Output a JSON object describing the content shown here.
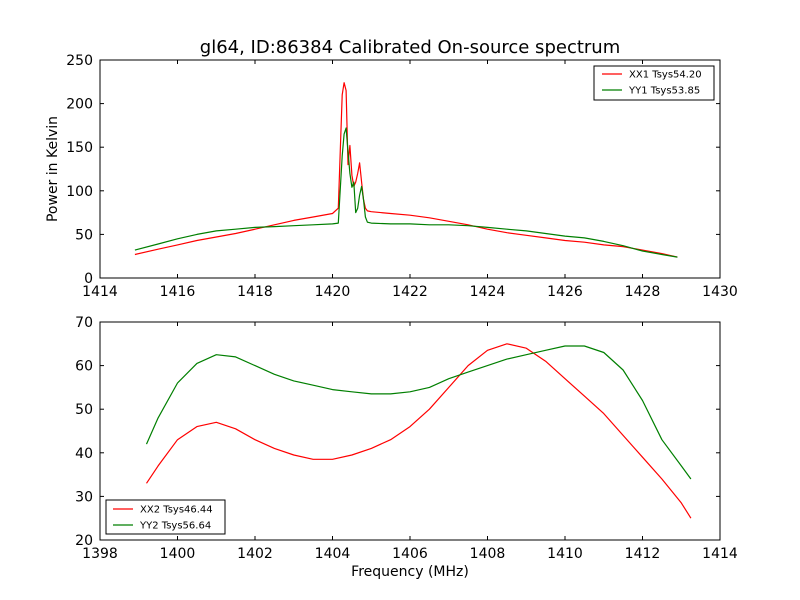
{
  "chart_data": [
    {
      "type": "line",
      "title": "gl64, ID:86384 Calibrated On-source spectrum",
      "xlabel": "",
      "ylabel": "Power in Kelvin",
      "xlim": [
        1414,
        1430
      ],
      "ylim": [
        0,
        250
      ],
      "x_ticks": [
        "1414",
        "1416",
        "1418",
        "1420",
        "1422",
        "1424",
        "1426",
        "1428",
        "1430"
      ],
      "y_ticks": [
        "0",
        "50",
        "100",
        "150",
        "200",
        "250"
      ],
      "legend_position": "top-right",
      "grid": false,
      "series": [
        {
          "name": "XX1 Tsys54.20",
          "color": "#ff0000",
          "x": [
            1414.9,
            1415.5,
            1416,
            1416.5,
            1417,
            1417.5,
            1418,
            1418.5,
            1419,
            1419.5,
            1420,
            1420.15,
            1420.25,
            1420.3,
            1420.35,
            1420.4,
            1420.45,
            1420.5,
            1420.55,
            1420.6,
            1420.65,
            1420.7,
            1420.75,
            1420.8,
            1420.85,
            1420.9,
            1421,
            1421.5,
            1422,
            1422.5,
            1423,
            1423.5,
            1424,
            1424.5,
            1425,
            1425.5,
            1426,
            1426.5,
            1427,
            1427.5,
            1428,
            1428.5,
            1428.9
          ],
          "y": [
            27,
            33,
            38,
            43,
            47,
            51,
            56,
            61,
            66,
            70,
            74,
            80,
            210,
            224,
            215,
            130,
            152,
            118,
            105,
            110,
            120,
            132,
            110,
            90,
            80,
            77,
            76,
            74,
            72,
            69,
            65,
            61,
            56,
            52,
            49,
            46,
            43,
            41,
            38,
            36,
            32,
            28,
            24
          ]
        },
        {
          "name": "YY1 Tsys53.85",
          "color": "#007f00",
          "x": [
            1414.9,
            1415.5,
            1416,
            1416.5,
            1417,
            1417.5,
            1418,
            1418.5,
            1419,
            1419.5,
            1420,
            1420.15,
            1420.25,
            1420.3,
            1420.35,
            1420.4,
            1420.45,
            1420.5,
            1420.55,
            1420.6,
            1420.65,
            1420.7,
            1420.75,
            1420.8,
            1420.85,
            1420.9,
            1421,
            1421.5,
            1422,
            1422.5,
            1423,
            1423.5,
            1424,
            1424.5,
            1425,
            1425.5,
            1426,
            1426.5,
            1427,
            1427.5,
            1428,
            1428.5,
            1428.9
          ],
          "y": [
            32,
            39,
            45,
            50,
            54,
            56,
            58,
            59,
            60,
            61,
            62,
            63,
            140,
            165,
            172,
            145,
            120,
            104,
            110,
            75,
            80,
            95,
            105,
            90,
            70,
            64,
            63,
            62,
            62,
            61,
            61,
            60,
            58,
            56,
            54,
            51,
            48,
            46,
            42,
            37,
            31,
            27,
            24
          ]
        }
      ]
    },
    {
      "type": "line",
      "title": "",
      "xlabel": "Frequency (MHz)",
      "ylabel": "",
      "xlim": [
        1398,
        1414
      ],
      "ylim": [
        20,
        70
      ],
      "x_ticks": [
        "1398",
        "1400",
        "1402",
        "1404",
        "1406",
        "1408",
        "1410",
        "1412",
        "1414"
      ],
      "y_ticks": [
        "20",
        "30",
        "40",
        "50",
        "60",
        "70"
      ],
      "legend_position": "bottom-left",
      "grid": false,
      "series": [
        {
          "name": "XX2 Tsys46.44",
          "color": "#ff0000",
          "x": [
            1399.2,
            1399.5,
            1400,
            1400.5,
            1401,
            1401.5,
            1402,
            1402.5,
            1403,
            1403.5,
            1404,
            1404.5,
            1405,
            1405.5,
            1406,
            1406.5,
            1407,
            1407.5,
            1408,
            1408.5,
            1409,
            1409.5,
            1410,
            1410.5,
            1411,
            1411.5,
            1412,
            1412.5,
            1413,
            1413.25
          ],
          "y": [
            33,
            37,
            43,
            46,
            47,
            45.5,
            43,
            41,
            39.5,
            38.5,
            38.5,
            39.5,
            41,
            43,
            46,
            50,
            55,
            60,
            63.5,
            65,
            64,
            61,
            57,
            53,
            49,
            44,
            39,
            34,
            28.5,
            25
          ]
        },
        {
          "name": "YY2 Tsys56.64",
          "color": "#007f00",
          "x": [
            1399.2,
            1399.5,
            1400,
            1400.5,
            1401,
            1401.5,
            1402,
            1402.5,
            1403,
            1403.5,
            1404,
            1404.5,
            1405,
            1405.5,
            1406,
            1406.5,
            1407,
            1407.5,
            1408,
            1408.5,
            1409,
            1409.5,
            1410,
            1410.5,
            1411,
            1411.5,
            1412,
            1412.5,
            1413,
            1413.25
          ],
          "y": [
            42,
            48,
            56,
            60.5,
            62.5,
            62,
            60,
            58,
            56.5,
            55.5,
            54.5,
            54,
            53.5,
            53.5,
            54,
            55,
            57,
            58.5,
            60,
            61.5,
            62.5,
            63.5,
            64.5,
            64.5,
            63,
            59,
            52,
            43,
            37,
            34
          ]
        }
      ]
    }
  ]
}
